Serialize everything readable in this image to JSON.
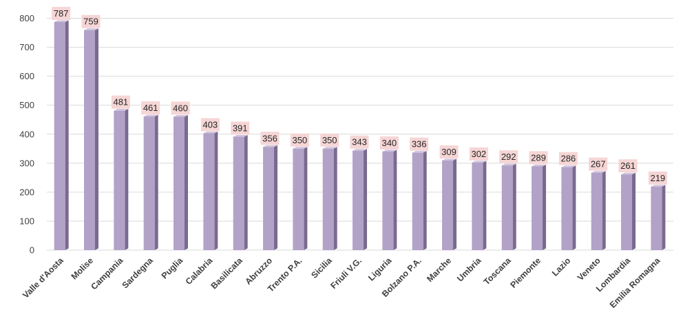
{
  "chart_data": {
    "type": "bar",
    "title": "",
    "xlabel": "",
    "ylabel": "",
    "ylim": [
      0,
      800
    ],
    "yticks": [
      0,
      100,
      200,
      300,
      400,
      500,
      600,
      700,
      800
    ],
    "grid": true,
    "categories": [
      "Valle d'Aosta",
      "Molise",
      "Campania",
      "Sardegna",
      "Puglia",
      "Calabria",
      "Basilicata",
      "Abruzzo",
      "Trento P.A.",
      "Sicilia",
      "Friuli V.G.",
      "Liguria",
      "Bolzano P.A.",
      "Marche",
      "Umbria",
      "Toscana",
      "Piemonte",
      "Lazio",
      "Veneto",
      "Lombardia",
      "Emilia Romagna"
    ],
    "values": [
      787,
      759,
      481,
      461,
      460,
      403,
      391,
      356,
      350,
      350,
      343,
      340,
      336,
      309,
      302,
      292,
      289,
      286,
      267,
      261,
      219
    ],
    "colors": {
      "bar_front": "#b3a2c7",
      "bar_side": "#7a6a8f",
      "bar_top": "#cfc3de",
      "label_bg": "#f5d5d5",
      "grid": "#d9d9d9"
    }
  }
}
